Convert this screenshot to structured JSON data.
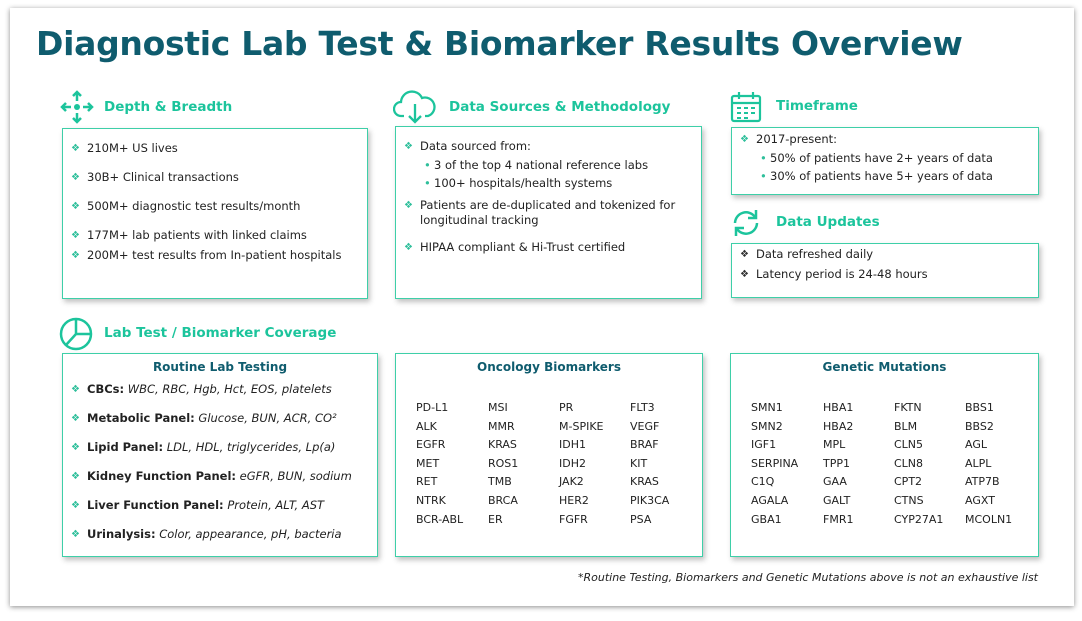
{
  "title": "Diagnostic Lab Test & Biomarker Results Overview",
  "depth": {
    "heading": "Depth & Breadth",
    "items": [
      "210M+ US lives",
      "30B+ Clinical transactions",
      "500M+ diagnostic test results/month",
      "177M+ lab patients with linked claims",
      "200M+ test results from In-patient hospitals"
    ]
  },
  "sources": {
    "heading": "Data Sources & Methodology",
    "items": [
      {
        "text": "Data sourced from:",
        "sub": [
          "3 of the top 4 national reference labs",
          "100+ hospitals/health systems"
        ]
      },
      {
        "text": "Patients are de-duplicated and tokenized for longitudinal tracking"
      },
      {
        "text": "HIPAA compliant & Hi-Trust certified"
      }
    ]
  },
  "timeframe": {
    "heading": "Timeframe",
    "items": [
      {
        "text": "2017-present:",
        "sub": [
          "50% of patients have 2+ years of data",
          "30% of patients have 5+ years of data"
        ]
      }
    ]
  },
  "updates": {
    "heading": "Data Updates",
    "items": [
      "Data refreshed daily",
      "Latency period is 24-48 hours"
    ]
  },
  "coverage": {
    "heading": "Lab Test / Biomarker Coverage",
    "routine": {
      "title": "Routine Lab Testing",
      "items": [
        {
          "label": "CBCs:",
          "detail": "WBC, RBC, Hgb, Hct, EOS, platelets"
        },
        {
          "label": "Metabolic Panel:",
          "detail": "Glucose, BUN, ACR, CO²"
        },
        {
          "label": "Lipid Panel:",
          "detail": "LDL, HDL, triglycerides, Lp(a)"
        },
        {
          "label": "Kidney Function Panel:",
          "detail": "eGFR, BUN, sodium"
        },
        {
          "label": "Liver Function Panel:",
          "detail": "Protein, ALT, AST"
        },
        {
          "label": "Urinalysis:",
          "detail": "Color, appearance, pH, bacteria"
        }
      ]
    },
    "oncology": {
      "title": "Oncology Biomarkers",
      "rows": [
        [
          "PD-L1",
          "MSI",
          "PR",
          "FLT3"
        ],
        [
          "ALK",
          "MMR",
          "M-SPIKE",
          "VEGF"
        ],
        [
          "EGFR",
          "KRAS",
          "IDH1",
          "BRAF"
        ],
        [
          "MET",
          "ROS1",
          "IDH2",
          "KIT"
        ],
        [
          "RET",
          "TMB",
          "JAK2",
          "KRAS"
        ],
        [
          "NTRK",
          "BRCA",
          "HER2",
          "PIK3CA"
        ],
        [
          "BCR-ABL",
          "ER",
          "FGFR",
          "PSA"
        ]
      ]
    },
    "genetic": {
      "title": "Genetic Mutations",
      "rows": [
        [
          "SMN1",
          "HBA1",
          "FKTN",
          "BBS1"
        ],
        [
          "SMN2",
          "HBA2",
          "BLM",
          "BBS2"
        ],
        [
          "IGF1",
          "MPL",
          "CLN5",
          "AGL"
        ],
        [
          "SERPINA",
          "TPP1",
          "CLN8",
          "ALPL"
        ],
        [
          "C1Q",
          "GAA",
          "CPT2",
          "ATP7B"
        ],
        [
          "AGALA",
          "GALT",
          "CTNS",
          "AGXT"
        ],
        [
          "GBA1",
          "FMR1",
          "CYP27A1",
          "MCOLN1"
        ]
      ]
    }
  },
  "footnote": "*Routine Testing, Biomarkers and Genetic Mutations above is not an exhaustive list"
}
